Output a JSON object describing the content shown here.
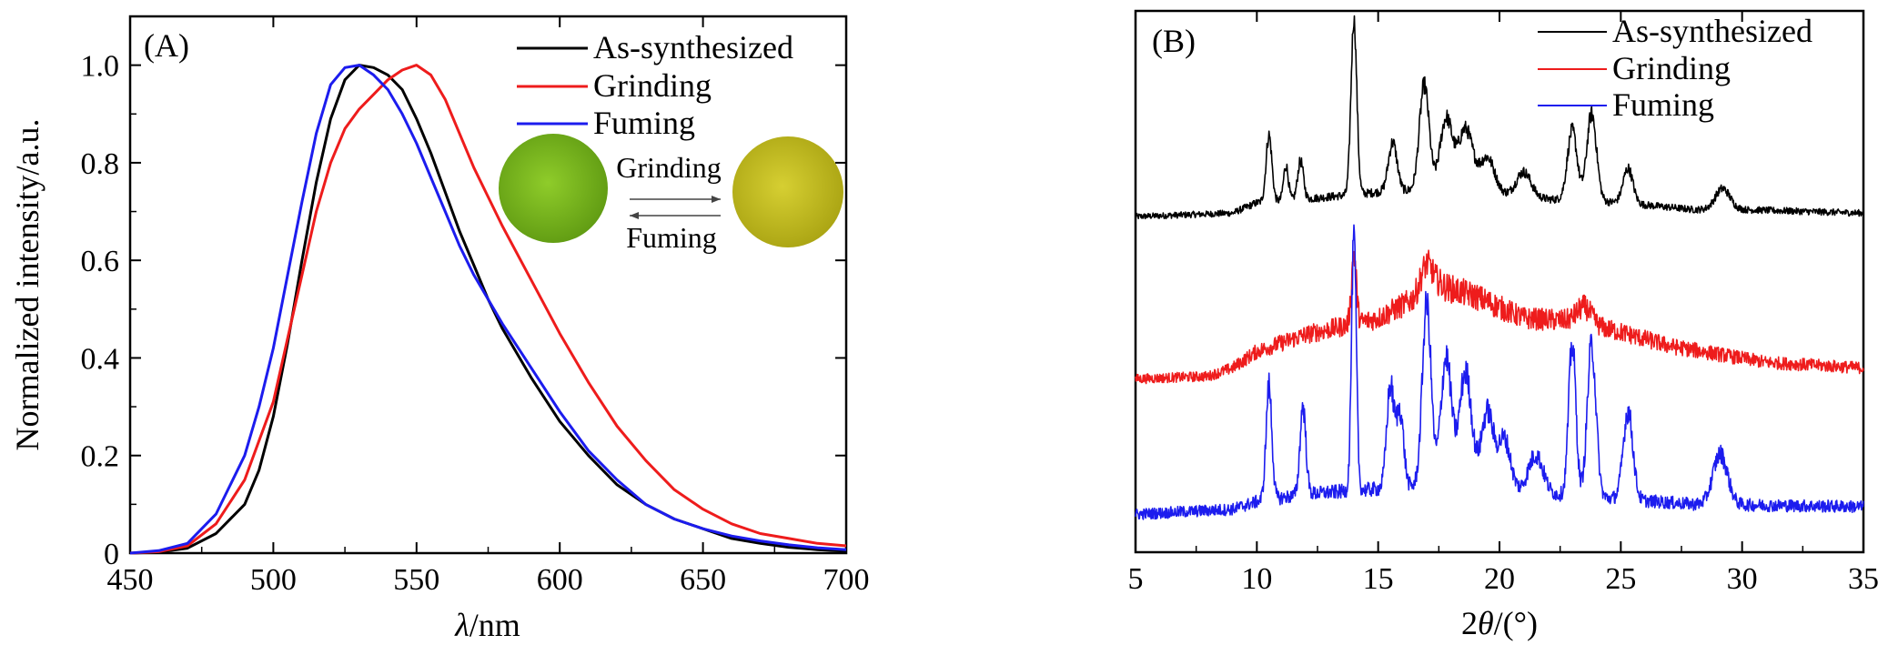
{
  "chart_data": [
    {
      "panel": "A",
      "panel_label": "(A)",
      "type": "line",
      "xlabel_symbol": "λ",
      "xlabel_unit": "/nm",
      "ylabel": "Normalized intensity/a.u.",
      "xlim": [
        450,
        700
      ],
      "ylim": [
        0,
        1.1
      ],
      "xticks": [
        "450",
        "500",
        "550",
        "600",
        "650",
        "700"
      ],
      "yticks": [
        "0",
        "0.2",
        "0.4",
        "0.6",
        "0.8",
        "1.0"
      ],
      "legend_position": "top-right",
      "series": [
        {
          "name": "As-synthesized",
          "color": "#000000",
          "points": [
            [
              450,
              0
            ],
            [
              460,
              0.002
            ],
            [
              470,
              0.01
            ],
            [
              480,
              0.04
            ],
            [
              490,
              0.1
            ],
            [
              495,
              0.17
            ],
            [
              500,
              0.28
            ],
            [
              505,
              0.43
            ],
            [
              510,
              0.6
            ],
            [
              515,
              0.76
            ],
            [
              520,
              0.89
            ],
            [
              525,
              0.97
            ],
            [
              530,
              1.0
            ],
            [
              535,
              0.995
            ],
            [
              540,
              0.98
            ],
            [
              545,
              0.95
            ],
            [
              550,
              0.89
            ],
            [
              555,
              0.82
            ],
            [
              560,
              0.74
            ],
            [
              565,
              0.66
            ],
            [
              570,
              0.59
            ],
            [
              575,
              0.52
            ],
            [
              580,
              0.46
            ],
            [
              590,
              0.36
            ],
            [
              600,
              0.27
            ],
            [
              610,
              0.2
            ],
            [
              620,
              0.14
            ],
            [
              630,
              0.1
            ],
            [
              640,
              0.07
            ],
            [
              650,
              0.05
            ],
            [
              660,
              0.03
            ],
            [
              670,
              0.02
            ],
            [
              680,
              0.012
            ],
            [
              690,
              0.007
            ],
            [
              700,
              0.004
            ]
          ]
        },
        {
          "name": "Grinding",
          "color": "#ee1c1c",
          "points": [
            [
              450,
              0
            ],
            [
              460,
              0.003
            ],
            [
              470,
              0.015
            ],
            [
              480,
              0.06
            ],
            [
              490,
              0.15
            ],
            [
              500,
              0.31
            ],
            [
              505,
              0.44
            ],
            [
              510,
              0.57
            ],
            [
              515,
              0.7
            ],
            [
              520,
              0.8
            ],
            [
              525,
              0.87
            ],
            [
              530,
              0.91
            ],
            [
              535,
              0.94
            ],
            [
              540,
              0.97
            ],
            [
              545,
              0.99
            ],
            [
              550,
              1.0
            ],
            [
              555,
              0.98
            ],
            [
              560,
              0.93
            ],
            [
              565,
              0.86
            ],
            [
              570,
              0.79
            ],
            [
              575,
              0.73
            ],
            [
              580,
              0.67
            ],
            [
              590,
              0.56
            ],
            [
              600,
              0.45
            ],
            [
              610,
              0.35
            ],
            [
              620,
              0.26
            ],
            [
              630,
              0.19
            ],
            [
              640,
              0.13
            ],
            [
              650,
              0.09
            ],
            [
              660,
              0.06
            ],
            [
              670,
              0.04
            ],
            [
              680,
              0.03
            ],
            [
              690,
              0.02
            ],
            [
              700,
              0.015
            ]
          ]
        },
        {
          "name": "Fuming",
          "color": "#1c1cee",
          "points": [
            [
              450,
              0
            ],
            [
              460,
              0.005
            ],
            [
              470,
              0.02
            ],
            [
              480,
              0.08
            ],
            [
              490,
              0.2
            ],
            [
              495,
              0.3
            ],
            [
              500,
              0.42
            ],
            [
              505,
              0.57
            ],
            [
              510,
              0.72
            ],
            [
              515,
              0.86
            ],
            [
              520,
              0.96
            ],
            [
              525,
              0.995
            ],
            [
              530,
              1.0
            ],
            [
              535,
              0.98
            ],
            [
              540,
              0.95
            ],
            [
              545,
              0.9
            ],
            [
              550,
              0.84
            ],
            [
              555,
              0.77
            ],
            [
              560,
              0.7
            ],
            [
              565,
              0.63
            ],
            [
              570,
              0.57
            ],
            [
              580,
              0.47
            ],
            [
              590,
              0.38
            ],
            [
              600,
              0.29
            ],
            [
              610,
              0.21
            ],
            [
              620,
              0.15
            ],
            [
              630,
              0.1
            ],
            [
              640,
              0.07
            ],
            [
              650,
              0.05
            ],
            [
              660,
              0.035
            ],
            [
              670,
              0.025
            ],
            [
              680,
              0.017
            ],
            [
              690,
              0.011
            ],
            [
              700,
              0.007
            ]
          ]
        }
      ],
      "inset": {
        "left_swatch_color": "#7fbf1c",
        "right_swatch_color": "#c9c41e",
        "top_label": "Grinding",
        "bottom_label": "Fuming"
      }
    },
    {
      "panel": "B",
      "panel_label": "(B)",
      "type": "line",
      "xlabel_prefix": "2",
      "xlabel_symbol": "θ",
      "xlabel_unit": "/(°)",
      "xlim": [
        5,
        35
      ],
      "ylim": [
        0,
        1
      ],
      "xticks": [
        "5",
        "10",
        "15",
        "20",
        "25",
        "30",
        "35"
      ],
      "y_ticks_shown": false,
      "legend_position": "top-right",
      "series": [
        {
          "name": "As-synthesized",
          "color": "#000000",
          "baseline": 0.62,
          "scale": 0.38,
          "noise": 0.035,
          "background": [
            [
              5,
              0
            ],
            [
              9,
              0.02
            ],
            [
              10,
              0.08
            ],
            [
              12,
              0.1
            ],
            [
              15,
              0.14
            ],
            [
              18,
              0.16
            ],
            [
              22,
              0.1
            ],
            [
              25,
              0.08
            ],
            [
              28,
              0.04
            ],
            [
              30,
              0.04
            ],
            [
              35,
              0.02
            ]
          ],
          "peaks": [
            [
              10.5,
              0.38,
              0.12
            ],
            [
              11.2,
              0.2,
              0.1
            ],
            [
              11.8,
              0.22,
              0.12
            ],
            [
              14.0,
              1.0,
              0.12
            ],
            [
              15.6,
              0.28,
              0.18
            ],
            [
              16.9,
              0.6,
              0.2
            ],
            [
              17.8,
              0.4,
              0.25
            ],
            [
              18.6,
              0.35,
              0.3
            ],
            [
              19.5,
              0.2,
              0.3
            ],
            [
              21.0,
              0.14,
              0.3
            ],
            [
              23.0,
              0.4,
              0.2
            ],
            [
              23.8,
              0.5,
              0.2
            ],
            [
              25.3,
              0.2,
              0.2
            ],
            [
              29.2,
              0.12,
              0.3
            ]
          ]
        },
        {
          "name": "Grinding",
          "color": "#ee1c1c",
          "baseline": 0.32,
          "scale": 0.3,
          "noise": 0.07,
          "background": [
            [
              5,
              0
            ],
            [
              8,
              0.02
            ],
            [
              9,
              0.08
            ],
            [
              10,
              0.2
            ],
            [
              12,
              0.32
            ],
            [
              15,
              0.44
            ],
            [
              16.5,
              0.58
            ],
            [
              17.5,
              0.68
            ],
            [
              19,
              0.6
            ],
            [
              20,
              0.52
            ],
            [
              21,
              0.44
            ],
            [
              23,
              0.42
            ],
            [
              25,
              0.34
            ],
            [
              27,
              0.24
            ],
            [
              29,
              0.18
            ],
            [
              31,
              0.12
            ],
            [
              35,
              0.08
            ]
          ],
          "peaks": [
            [
              14.0,
              0.5,
              0.1
            ],
            [
              17.0,
              0.2,
              0.25
            ],
            [
              23.5,
              0.12,
              0.3
            ]
          ]
        },
        {
          "name": "Fuming",
          "color": "#1c1cee",
          "baseline": 0.07,
          "scale": 0.55,
          "noise": 0.045,
          "background": [
            [
              5,
              0
            ],
            [
              9,
              0.02
            ],
            [
              10,
              0.05
            ],
            [
              12,
              0.08
            ],
            [
              15,
              0.1
            ],
            [
              18,
              0.12
            ],
            [
              22,
              0.08
            ],
            [
              25,
              0.06
            ],
            [
              28,
              0.04
            ],
            [
              35,
              0.03
            ]
          ],
          "peaks": [
            [
              10.5,
              0.45,
              0.12
            ],
            [
              11.9,
              0.35,
              0.12
            ],
            [
              14.0,
              1.0,
              0.1
            ],
            [
              15.5,
              0.4,
              0.15
            ],
            [
              15.9,
              0.3,
              0.15
            ],
            [
              17.0,
              0.72,
              0.18
            ],
            [
              17.8,
              0.5,
              0.22
            ],
            [
              18.6,
              0.45,
              0.25
            ],
            [
              19.5,
              0.3,
              0.25
            ],
            [
              20.2,
              0.2,
              0.25
            ],
            [
              21.5,
              0.15,
              0.3
            ],
            [
              23.0,
              0.6,
              0.15
            ],
            [
              23.8,
              0.6,
              0.18
            ],
            [
              25.3,
              0.35,
              0.2
            ],
            [
              29.1,
              0.2,
              0.3
            ]
          ]
        }
      ]
    }
  ]
}
